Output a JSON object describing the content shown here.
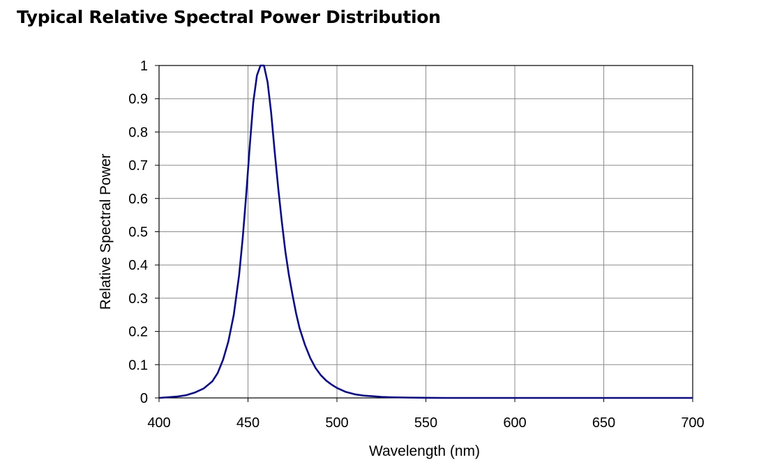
{
  "chart_data": {
    "type": "line",
    "title": "Typical Relative Spectral Power Distribution",
    "xlabel": "Wavelength (nm)",
    "ylabel": "Relative Spectral Power",
    "xlim": [
      400,
      700
    ],
    "ylim": [
      0,
      1
    ],
    "x_ticks": [
      "400",
      "450",
      "500",
      "550",
      "600",
      "650",
      "700"
    ],
    "y_ticks": [
      "0",
      "0.1",
      "0.2",
      "0.3",
      "0.4",
      "0.5",
      "0.6",
      "0.7",
      "0.8",
      "0.9",
      "1"
    ],
    "grid": true,
    "legend": "none",
    "colors": {
      "series": "#0c0c80",
      "grid": "#8c8c8c",
      "frame": "#000000"
    },
    "series": [
      {
        "x": [
          400,
          405,
          410,
          415,
          420,
          425,
          430,
          433,
          436,
          439,
          442,
          445,
          447,
          449,
          451,
          453,
          455,
          457,
          459,
          461,
          463,
          465,
          467,
          469,
          471,
          473,
          475,
          477,
          479,
          482,
          485,
          488,
          491,
          494,
          497,
          500,
          505,
          510,
          515,
          520,
          525,
          530,
          540,
          550,
          560,
          580,
          600,
          650,
          700
        ],
        "y": [
          0.0,
          0.002,
          0.004,
          0.008,
          0.016,
          0.028,
          0.05,
          0.075,
          0.115,
          0.17,
          0.25,
          0.37,
          0.48,
          0.61,
          0.76,
          0.89,
          0.97,
          1.0,
          1.0,
          0.95,
          0.86,
          0.74,
          0.63,
          0.53,
          0.44,
          0.37,
          0.31,
          0.255,
          0.21,
          0.16,
          0.12,
          0.09,
          0.068,
          0.052,
          0.04,
          0.03,
          0.018,
          0.011,
          0.007,
          0.005,
          0.003,
          0.002,
          0.001,
          0.0005,
          0.0,
          0.0,
          0.0,
          0.0,
          0.0
        ]
      }
    ]
  }
}
